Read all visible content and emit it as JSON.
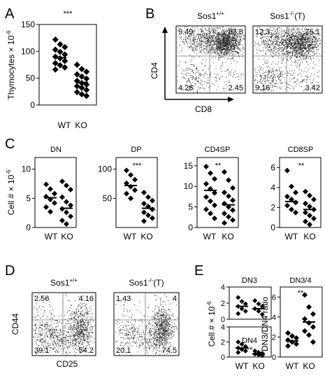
{
  "panel_labels": {
    "a": "A",
    "b": "B",
    "c": "C",
    "d": "D",
    "e": "E"
  },
  "chart_data": [
    {
      "id": "A",
      "type": "scatter",
      "title": "",
      "ylabel": "Thymocytes × 10",
      "ylabel_exp": "-6",
      "ylim": [
        0,
        150
      ],
      "yticks": [
        "0",
        "50",
        "100",
        "150"
      ],
      "significance": "***",
      "categories": [
        "WT",
        "KO"
      ],
      "series": [
        {
          "values": [
            122,
            113,
            108,
            103,
            99,
            94,
            90,
            87,
            82,
            78,
            74,
            70,
            66
          ],
          "mean": 88
        },
        {
          "values": [
            75,
            67,
            62,
            57,
            53,
            49,
            45,
            41,
            38,
            35,
            32,
            28,
            24,
            20,
            17
          ],
          "mean": 42
        }
      ]
    },
    {
      "id": "C1",
      "type": "scatter",
      "title": "DN",
      "ylabel": "Cell # × 10",
      "ylabel_exp": "-6",
      "ylim": [
        0,
        12
      ],
      "yticks": [
        "0",
        "5",
        "10"
      ],
      "significance": "",
      "categories": [
        "WT",
        "KO"
      ],
      "series": [
        {
          "values": [
            7.4,
            6.6,
            5.8,
            5.3,
            4.8,
            4.2,
            3.5,
            2.7
          ],
          "mean": 5.1
        },
        {
          "values": [
            7.9,
            7.2,
            6.5,
            5.2,
            4.4,
            3.8,
            3.2,
            2.6,
            1.9,
            1.2,
            0.6
          ],
          "mean": 3.3
        }
      ]
    },
    {
      "id": "C2",
      "type": "scatter",
      "title": "DP",
      "ylabel": "",
      "ylim": [
        0,
        120
      ],
      "yticks": [
        "50",
        "100"
      ],
      "significance": "***",
      "categories": [
        "WT",
        "KO"
      ],
      "series": [
        {
          "values": [
            98,
            90,
            82,
            76,
            70,
            64,
            58,
            50
          ],
          "mean": 72
        },
        {
          "values": [
            60,
            52,
            46,
            41,
            36,
            31,
            26,
            21,
            16,
            11
          ],
          "mean": 33
        }
      ]
    },
    {
      "id": "C3",
      "type": "scatter",
      "title": "CD4SP",
      "ylabel": "",
      "ylim": [
        0,
        17
      ],
      "yticks": [
        "0",
        "5",
        "10",
        "15"
      ],
      "significance": "**",
      "categories": [
        "WT",
        "KO"
      ],
      "series": [
        {
          "values": [
            14.8,
            13.2,
            11.8,
            10.6,
            9.4,
            8.4,
            7.4,
            6.4,
            5.4,
            4.4,
            3.4,
            2.2
          ],
          "mean": 9.0
        },
        {
          "values": [
            13.5,
            11.5,
            9.6,
            8.5,
            7.6,
            6.6,
            5.8,
            5.0,
            4.2,
            3.4,
            2.6,
            1.8,
            1.1
          ],
          "mean": 5.5
        }
      ]
    },
    {
      "id": "C4",
      "type": "scatter",
      "title": "CD8SP",
      "ylabel": "",
      "ylim": [
        0,
        7
      ],
      "yticks": [
        "0",
        "2",
        "4",
        "6"
      ],
      "significance": "**",
      "categories": [
        "WT",
        "KO"
      ],
      "series": [
        {
          "values": [
            5.7,
            4.1,
            3.5,
            3.1,
            2.8,
            2.5,
            2.2,
            1.8,
            1.5
          ],
          "mean": 2.6
        },
        {
          "values": [
            3.6,
            3.2,
            2.8,
            2.4,
            2.1,
            1.8,
            1.5,
            1.2,
            0.9,
            0.6,
            0.3
          ],
          "mean": 1.8
        }
      ]
    },
    {
      "id": "E1",
      "type": "scatter",
      "title": "DN3",
      "ylabel": "Cell # × 10",
      "ylabel_exp": "-6",
      "ylim": [
        0,
        4
      ],
      "yticks": [
        "0",
        "2",
        "4"
      ],
      "significance": "",
      "categories": [
        "WT",
        "KO"
      ],
      "series": [
        {
          "values": [
            2.7,
            2.2,
            1.9,
            1.6,
            1.3,
            1.0,
            0.7
          ],
          "mean": 1.6
        },
        {
          "values": [
            2.3,
            1.9,
            1.6,
            1.3,
            1.0,
            0.6
          ],
          "mean": 1.3
        }
      ]
    },
    {
      "id": "E2",
      "type": "scatter",
      "title": "DN4",
      "ylabel": "",
      "ylim": [
        0,
        4
      ],
      "yticks": [
        "0",
        "2",
        "4"
      ],
      "significance": "**",
      "categories": [
        "WT",
        "KO"
      ],
      "series": [
        {
          "values": [
            2.0,
            1.7,
            1.4,
            1.2,
            1.0,
            0.8,
            0.6
          ],
          "mean": 1.2
        },
        {
          "values": [
            0.8,
            0.6,
            0.5,
            0.4,
            0.3,
            0.2
          ],
          "mean": 0.4
        }
      ]
    },
    {
      "id": "E3",
      "type": "scatter",
      "title": "DN3/4",
      "ylabel": "DN3/DN4 ratio",
      "ylim": [
        0,
        7
      ],
      "yticks": [
        "0",
        "2",
        "4",
        "6"
      ],
      "significance": "**",
      "categories": [
        "WT",
        "KO"
      ],
      "series": [
        {
          "values": [
            2.4,
            2.1,
            1.9,
            1.7,
            1.5,
            1.3,
            1.1
          ],
          "mean": 1.6
        },
        {
          "values": [
            6.2,
            5.0,
            4.3,
            3.8,
            3.4,
            3.0,
            2.6,
            2.2,
            1.5
          ],
          "mean": 3.5
        }
      ]
    },
    {
      "id": "B",
      "type": "flow-cytometry",
      "xlabel": "CD8",
      "ylabel": "CD4",
      "plots": [
        {
          "title": "Sos1",
          "title_sup": "+/+",
          "title_suffix": "",
          "quadrants": {
            "ul": "9.49",
            "ur": "83.8",
            "ll": "4.26",
            "lr": "2.45"
          }
        },
        {
          "title": "Sos1",
          "title_sup": "-/-",
          "title_suffix": "(T)",
          "quadrants": {
            "ul": "12.3",
            "ur": "75.1",
            "ll": "9.16",
            "lr": "3.42"
          }
        }
      ]
    },
    {
      "id": "D",
      "type": "flow-cytometry",
      "xlabel": "CD25",
      "ylabel": "CD44",
      "plots": [
        {
          "title": "Sos1",
          "title_sup": "+/+",
          "title_suffix": "",
          "quadrants": {
            "ul": "2.56",
            "ur": "4.16",
            "ll": "39.1",
            "lr": "54.2"
          }
        },
        {
          "title": "Sos1",
          "title_sup": "-/-",
          "title_suffix": "(T)",
          "quadrants": {
            "ul": "1.43",
            "ur": "4",
            "ll": "20.1",
            "lr": "74.5"
          }
        }
      ]
    }
  ]
}
